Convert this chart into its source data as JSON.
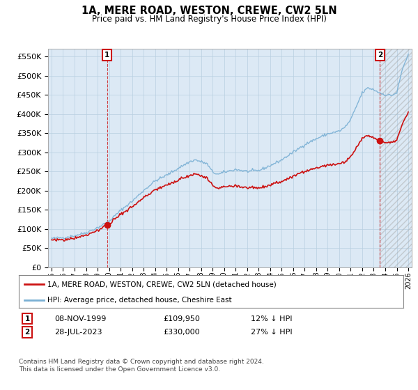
{
  "title": "1A, MERE ROAD, WESTON, CREWE, CW2 5LN",
  "subtitle": "Price paid vs. HM Land Registry's House Price Index (HPI)",
  "ylim": [
    0,
    570000
  ],
  "yticks": [
    0,
    50000,
    100000,
    150000,
    200000,
    250000,
    300000,
    350000,
    400000,
    450000,
    500000,
    550000
  ],
  "ytick_labels": [
    "£0",
    "£50K",
    "£100K",
    "£150K",
    "£200K",
    "£250K",
    "£300K",
    "£350K",
    "£400K",
    "£450K",
    "£500K",
    "£550K"
  ],
  "hpi_color": "#7ab0d4",
  "price_color": "#cc1111",
  "annotation_box_color": "#cc1111",
  "background_color": "#ffffff",
  "chart_bg_color": "#dce9f5",
  "grid_color": "#b8cfe0",
  "legend_label_price": "1A, MERE ROAD, WESTON, CREWE, CW2 5LN (detached house)",
  "legend_label_hpi": "HPI: Average price, detached house, Cheshire East",
  "sale1_date": "08-NOV-1999",
  "sale1_price": 109950,
  "sale1_label": "£109,950",
  "sale1_hpi_pct": "12% ↓ HPI",
  "sale2_date": "28-JUL-2023",
  "sale2_price": 330000,
  "sale2_label": "£330,000",
  "sale2_hpi_pct": "27% ↓ HPI",
  "footer": "Contains HM Land Registry data © Crown copyright and database right 2024.\nThis data is licensed under the Open Government Licence v3.0.",
  "x_start_year": 1995,
  "x_end_year": 2026,
  "hpi_anchors_t": [
    1995.0,
    1996.0,
    1997.0,
    1998.0,
    1999.0,
    2000.0,
    2001.0,
    2002.0,
    2003.0,
    2004.0,
    2005.0,
    2006.0,
    2007.0,
    2007.5,
    2008.5,
    2009.0,
    2009.5,
    2010.0,
    2011.0,
    2012.0,
    2013.0,
    2014.0,
    2015.0,
    2016.0,
    2017.0,
    2018.0,
    2019.0,
    2020.0,
    2020.5,
    2021.0,
    2021.5,
    2022.0,
    2022.5,
    2023.0,
    2023.5,
    2024.0,
    2024.5,
    2025.0,
    2025.5,
    2026.0
  ],
  "hpi_anchors_v": [
    75000,
    77000,
    82000,
    90000,
    103000,
    120000,
    148000,
    172000,
    200000,
    225000,
    240000,
    258000,
    275000,
    280000,
    270000,
    248000,
    242000,
    248000,
    255000,
    250000,
    252000,
    265000,
    280000,
    300000,
    320000,
    335000,
    348000,
    355000,
    365000,
    385000,
    420000,
    455000,
    468000,
    463000,
    455000,
    450000,
    448000,
    455000,
    518000,
    555000
  ],
  "price_ratio_at_sale1": 0.88,
  "price_ratio_at_sale2": 0.73,
  "sale1_year_f": 1999.833,
  "sale2_year_f": 2023.542
}
